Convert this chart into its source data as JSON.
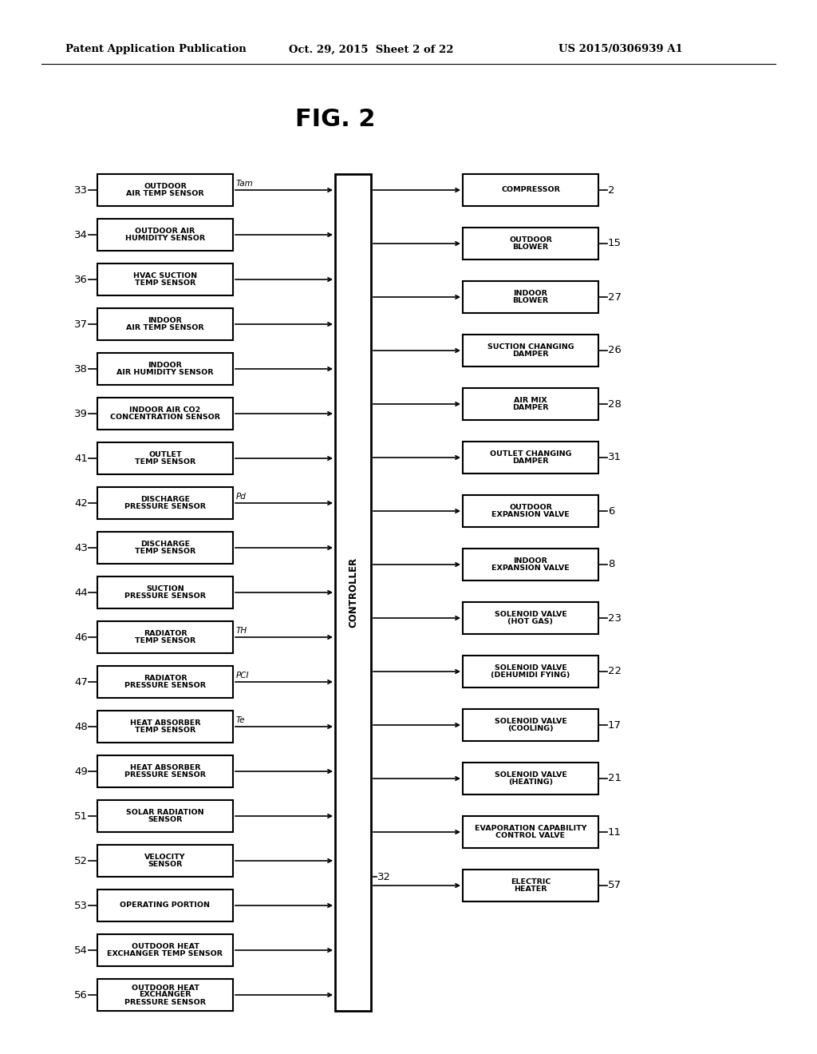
{
  "title_line1": "Patent Application Publication",
  "title_line2": "Oct. 29, 2015  Sheet 2 of 22",
  "title_line3": "US 2015/0306939 A1",
  "fig_title": "FIG. 2",
  "bg_color": "#ffffff",
  "left_sensors": [
    {
      "num": "33",
      "text": "OUTDOOR\nAIR TEMP SENSOR",
      "label": "Tam"
    },
    {
      "num": "34",
      "text": "OUTDOOR AIR\nHUMIDITY SENSOR",
      "label": ""
    },
    {
      "num": "36",
      "text": "HVAC SUCTION\nTEMP SENSOR",
      "label": ""
    },
    {
      "num": "37",
      "text": "INDOOR\nAIR TEMP SENSOR",
      "label": ""
    },
    {
      "num": "38",
      "text": "INDOOR\nAIR HUMIDITY SENSOR",
      "label": ""
    },
    {
      "num": "39",
      "text": "INDOOR AIR CO2\nCONCENTRATION SENSOR",
      "label": ""
    },
    {
      "num": "41",
      "text": "OUTLET\nTEMP SENSOR",
      "label": ""
    },
    {
      "num": "42",
      "text": "DISCHARGE\nPRESSURE SENSOR",
      "label": "Pd"
    },
    {
      "num": "43",
      "text": "DISCHARGE\nTEMP SENSOR",
      "label": ""
    },
    {
      "num": "44",
      "text": "SUCTION\nPRESSURE SENSOR",
      "label": ""
    },
    {
      "num": "46",
      "text": "RADIATOR\nTEMP SENSOR",
      "label": "TH"
    },
    {
      "num": "47",
      "text": "RADIATOR\nPRESSURE SENSOR",
      "label": "PCI"
    },
    {
      "num": "48",
      "text": "HEAT ABSORBER\nTEMP SENSOR",
      "label": "Te"
    },
    {
      "num": "49",
      "text": "HEAT ABSORBER\nPRESSURE SENSOR",
      "label": ""
    },
    {
      "num": "51",
      "text": "SOLAR RADIATION\nSENSOR",
      "label": ""
    },
    {
      "num": "52",
      "text": "VELOCITY\nSENSOR",
      "label": ""
    },
    {
      "num": "53",
      "text": "OPERATING PORTION",
      "label": ""
    },
    {
      "num": "54",
      "text": "OUTDOOR HEAT\nEXCHANGER TEMP SENSOR",
      "label": ""
    },
    {
      "num": "56",
      "text": "OUTDOOR HEAT\nEXCHANGER\nPRESSURE SENSOR",
      "label": ""
    }
  ],
  "right_outputs": [
    {
      "num": "2",
      "text": "COMPRESSOR"
    },
    {
      "num": "15",
      "text": "OUTDOOR\nBLOWER"
    },
    {
      "num": "27",
      "text": "INDOOR\nBLOWER"
    },
    {
      "num": "26",
      "text": "SUCTION CHANGING\nDAMPER"
    },
    {
      "num": "28",
      "text": "AIR MIX\nDAMPER"
    },
    {
      "num": "31",
      "text": "OUTLET CHANGING\nDAMPER"
    },
    {
      "num": "6",
      "text": "OUTDOOR\nEXPANSION VALVE"
    },
    {
      "num": "8",
      "text": "INDOOR\nEXPANSION VALVE"
    },
    {
      "num": "23",
      "text": "SOLENOID VALVE\n(HOT GAS)"
    },
    {
      "num": "22",
      "text": "SOLENOID VALVE\n(DEHUMIDI FYING)"
    },
    {
      "num": "17",
      "text": "SOLENOID VALVE\n(COOLING)"
    },
    {
      "num": "21",
      "text": "SOLENOID VALVE\n(HEATING)"
    },
    {
      "num": "11",
      "text": "EVAPORATION CAPABILITY\nCONTROL VALVE"
    },
    {
      "num": "57",
      "text": "ELECTRIC\nHEATER"
    }
  ],
  "controller_label": "CONTROLLER",
  "controller_num": "32"
}
